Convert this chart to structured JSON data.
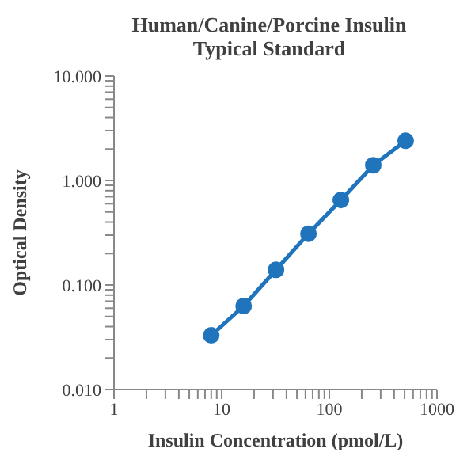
{
  "chart_data": {
    "type": "line",
    "title": "Human/Canine/Porcine Insulin\nTypical Standard",
    "xlabel": "Insulin Concentration (pmol/L)",
    "ylabel": "Optical Density",
    "log": "xy",
    "marker": "circle",
    "line_style": "solid",
    "grid": false,
    "x": [
      8,
      16,
      32,
      64,
      128,
      256,
      512
    ],
    "series": [
      {
        "color": "#1f74bc",
        "values": [
          0.033,
          0.063,
          0.14,
          0.31,
          0.65,
          1.4,
          2.4
        ]
      }
    ],
    "xlim": [
      1,
      1000
    ],
    "ylim": [
      0.01,
      10
    ],
    "xticks": [
      1,
      {
        "value": 2,
        "label": null
      },
      {
        "value": 3,
        "label": null
      },
      {
        "value": 4,
        "label": null
      },
      {
        "value": 5,
        "label": null
      },
      {
        "value": 6,
        "label": null
      },
      {
        "value": 7,
        "label": null
      },
      {
        "value": 8,
        "label": null
      },
      {
        "value": 9,
        "label": null
      },
      10,
      {
        "value": 20,
        "label": null
      },
      {
        "value": 30,
        "label": null
      },
      {
        "value": 40,
        "label": null
      },
      {
        "value": 50,
        "label": null
      },
      {
        "value": 60,
        "label": null
      },
      {
        "value": 70,
        "label": null
      },
      {
        "value": 80,
        "label": null
      },
      {
        "value": 90,
        "label": null
      },
      100,
      {
        "value": 200,
        "label": null
      },
      {
        "value": 300,
        "label": null
      },
      {
        "value": 400,
        "label": null
      },
      {
        "value": 500,
        "label": null
      },
      {
        "value": 600,
        "label": null
      },
      {
        "value": 700,
        "label": null
      },
      {
        "value": 800,
        "label": null
      },
      {
        "value": 900,
        "label": null
      },
      1000
    ],
    "yticks": [
      {
        "value": 0.01,
        "label": "0.010"
      },
      {
        "value": 0.02,
        "label": null
      },
      {
        "value": 0.03,
        "label": null
      },
      {
        "value": 0.04,
        "label": null
      },
      {
        "value": 0.05,
        "label": null
      },
      {
        "value": 0.06,
        "label": null
      },
      {
        "value": 0.07,
        "label": null
      },
      {
        "value": 0.08,
        "label": null
      },
      {
        "value": 0.09,
        "label": null
      },
      {
        "value": 0.1,
        "label": "0.100"
      },
      {
        "value": 0.2,
        "label": null
      },
      {
        "value": 0.3,
        "label": null
      },
      {
        "value": 0.4,
        "label": null
      },
      {
        "value": 0.5,
        "label": null
      },
      {
        "value": 0.6,
        "label": null
      },
      {
        "value": 0.7,
        "label": null
      },
      {
        "value": 0.8,
        "label": null
      },
      {
        "value": 0.9,
        "label": null
      },
      {
        "value": 1,
        "label": "1.000"
      },
      {
        "value": 2,
        "label": null
      },
      {
        "value": 3,
        "label": null
      },
      {
        "value": 4,
        "label": null
      },
      {
        "value": 5,
        "label": null
      },
      {
        "value": 6,
        "label": null
      },
      {
        "value": 7,
        "label": null
      },
      {
        "value": 8,
        "label": null
      },
      {
        "value": 9,
        "label": null
      },
      {
        "value": 10,
        "label": "10.000"
      }
    ]
  }
}
